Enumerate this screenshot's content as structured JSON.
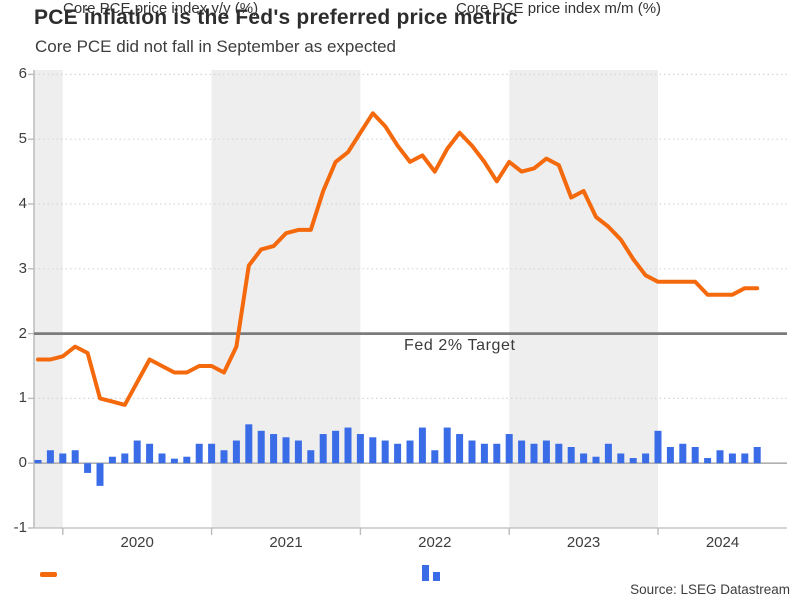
{
  "header": {
    "title": "PCE inflation is the Fed's preferred price metric",
    "subtitle": "Core PCE did not fall in September as expected"
  },
  "source_note": "Source: LSEG Datastream",
  "colors": {
    "yoy_line": "#f5690d",
    "mom_bar": "#3b6ce8",
    "target_line": "#7b7b7b",
    "zero_line": "#b0b0b0",
    "grid": "#d6d6d6",
    "band": "#eeeeee",
    "spine": "#bcbcbc",
    "text": "#3d3d3d"
  },
  "chart_data": {
    "type": "line+bar",
    "title": "PCE inflation is the Fed's preferred price metric",
    "subtitle": "Core PCE did not fall in September as expected",
    "x": {
      "frequency": "monthly",
      "start": "2019-11",
      "end": "2024-09",
      "tick_years": [
        "2020",
        "2021",
        "2022",
        "2023",
        "2024"
      ]
    },
    "y": {
      "min": -1,
      "max": 6,
      "ticks": [
        -1,
        0,
        1,
        2,
        3,
        4,
        5,
        6
      ],
      "grid_ticks": [
        1,
        3,
        4,
        5,
        6
      ]
    },
    "target_line": {
      "value": 2,
      "label": "Fed 2% Target"
    },
    "shaded_years": [
      2019,
      2021,
      2023
    ],
    "legend_position": "bottom",
    "series": [
      {
        "name": "Core PCE price index y/y (%)",
        "type": "line",
        "values": [
          1.6,
          1.6,
          1.65,
          1.8,
          1.7,
          1.0,
          0.95,
          0.9,
          1.25,
          1.6,
          1.5,
          1.4,
          1.4,
          1.5,
          1.5,
          1.4,
          1.8,
          3.05,
          3.3,
          3.35,
          3.55,
          3.6,
          3.6,
          4.2,
          4.65,
          4.8,
          5.1,
          5.4,
          5.2,
          4.9,
          4.65,
          4.75,
          4.5,
          4.85,
          5.1,
          4.9,
          4.65,
          4.35,
          4.65,
          4.5,
          4.55,
          4.7,
          4.6,
          4.1,
          4.2,
          3.8,
          3.65,
          3.45,
          3.15,
          2.9,
          2.8,
          2.8,
          2.8,
          2.8,
          2.6,
          2.6,
          2.6,
          2.7,
          2.7
        ]
      },
      {
        "name": "Core PCE price index m/m (%)",
        "type": "bar",
        "values": [
          0.05,
          0.2,
          0.15,
          0.2,
          -0.15,
          -0.35,
          0.1,
          0.15,
          0.35,
          0.3,
          0.15,
          0.07,
          0.1,
          0.3,
          0.3,
          0.2,
          0.35,
          0.6,
          0.5,
          0.45,
          0.4,
          0.35,
          0.2,
          0.45,
          0.5,
          0.55,
          0.45,
          0.4,
          0.35,
          0.3,
          0.35,
          0.55,
          0.2,
          0.55,
          0.45,
          0.35,
          0.3,
          0.3,
          0.45,
          0.35,
          0.3,
          0.35,
          0.3,
          0.25,
          0.15,
          0.1,
          0.3,
          0.15,
          0.08,
          0.15,
          0.5,
          0.25,
          0.3,
          0.25,
          0.08,
          0.2,
          0.15,
          0.15,
          0.25
        ]
      }
    ]
  }
}
